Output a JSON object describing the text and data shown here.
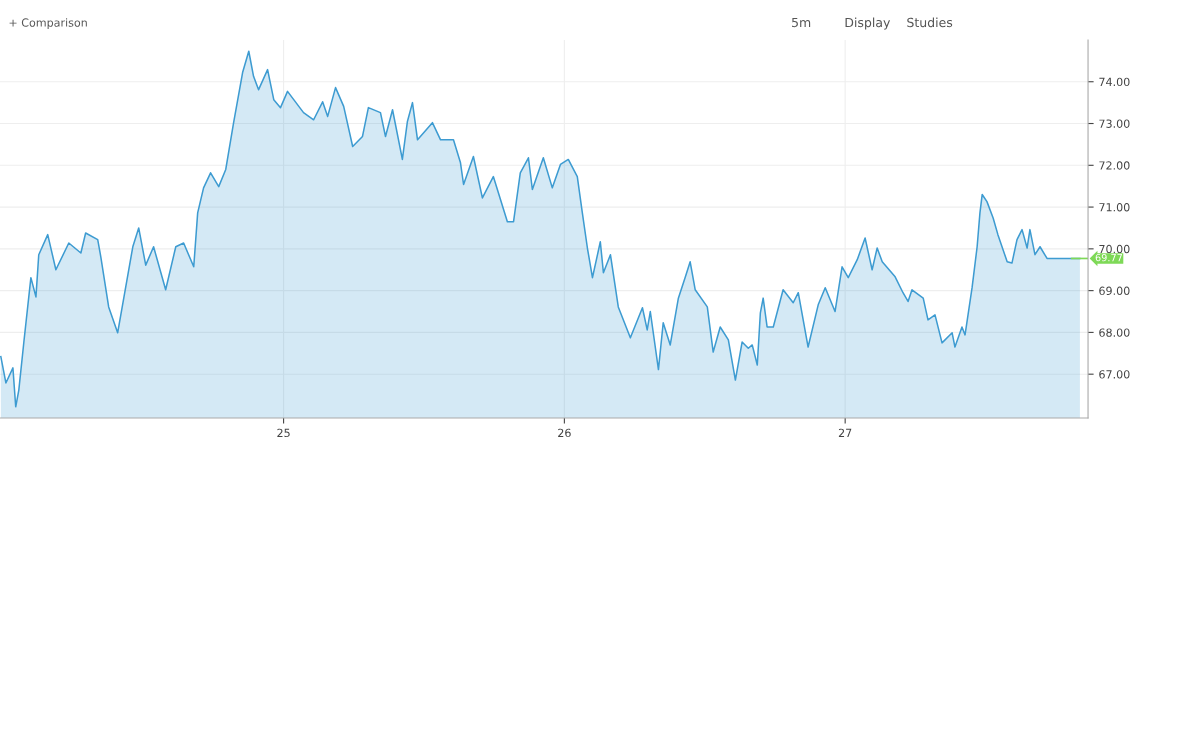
{
  "chart_data": {
    "type": "area",
    "series": [
      {
        "color": "#3d9bd1",
        "x": [
          23.993,
          24.011,
          24.036,
          24.046,
          24.057,
          24.075,
          24.1,
          24.118,
          24.128,
          24.16,
          24.189,
          24.235,
          24.278,
          24.295,
          24.338,
          24.349,
          24.377,
          24.409,
          24.463,
          24.484,
          24.509,
          24.537,
          24.58,
          24.616,
          24.644,
          24.68,
          24.694,
          24.715,
          24.74,
          24.769,
          24.794,
          24.822,
          24.854,
          24.876,
          24.893,
          24.911,
          24.943,
          24.965,
          24.989,
          25.014,
          25.071,
          25.107,
          25.139,
          25.157,
          25.185,
          25.214,
          25.246,
          25.281,
          25.302,
          25.345,
          25.363,
          25.388,
          25.423,
          25.441,
          25.459,
          25.477,
          25.53,
          25.559,
          25.605,
          25.63,
          25.641,
          25.676,
          25.708,
          25.747,
          25.797,
          25.819,
          25.843,
          25.872,
          25.886,
          25.925,
          25.957,
          25.986,
          26.014,
          26.046,
          26.064,
          26.082,
          26.1,
          26.128,
          26.139,
          26.164,
          26.192,
          26.235,
          26.278,
          26.295,
          26.306,
          26.335,
          26.352,
          26.377,
          26.406,
          26.431,
          26.448,
          26.466,
          26.509,
          26.53,
          26.555,
          26.584,
          26.609,
          26.633,
          26.655,
          26.669,
          26.687,
          26.698,
          26.708,
          26.722,
          26.744,
          26.779,
          26.815,
          26.833,
          26.868,
          26.904,
          26.929,
          26.964,
          26.989,
          27.011,
          27.043,
          27.071,
          27.096,
          27.114,
          27.132,
          27.178,
          27.206,
          27.224,
          27.238,
          27.278,
          27.295,
          27.32,
          27.345,
          27.381,
          27.391,
          27.416,
          27.427,
          27.452,
          27.47,
          27.48,
          27.488,
          27.505,
          27.527,
          27.544,
          27.577,
          27.594,
          27.612,
          27.63,
          27.648,
          27.658,
          27.676,
          27.694,
          27.719,
          27.836
        ],
        "values": [
          67.42,
          66.79,
          67.15,
          66.22,
          66.62,
          67.77,
          69.31,
          68.85,
          69.86,
          70.34,
          69.5,
          70.14,
          69.9,
          70.38,
          70.22,
          69.81,
          68.61,
          67.99,
          70.05,
          70.5,
          69.61,
          70.05,
          69.02,
          70.05,
          70.14,
          69.57,
          70.86,
          71.46,
          71.82,
          71.49,
          71.9,
          73.02,
          74.22,
          74.73,
          74.13,
          73.81,
          74.29,
          73.57,
          73.38,
          73.77,
          73.26,
          73.09,
          73.52,
          73.17,
          73.86,
          73.41,
          72.45,
          72.69,
          73.38,
          73.26,
          72.69,
          73.33,
          72.14,
          73.05,
          73.5,
          72.61,
          73.02,
          72.61,
          72.61,
          72.06,
          71.54,
          72.21,
          71.22,
          71.73,
          70.65,
          70.65,
          71.82,
          72.18,
          71.42,
          72.18,
          71.46,
          72.02,
          72.14,
          71.73,
          70.86,
          70.02,
          69.31,
          70.17,
          69.43,
          69.86,
          68.61,
          67.87,
          68.59,
          68.06,
          68.5,
          67.11,
          68.23,
          67.7,
          68.82,
          69.33,
          69.69,
          69.02,
          68.61,
          67.53,
          68.13,
          67.82,
          66.86,
          67.77,
          67.62,
          67.7,
          67.22,
          68.47,
          68.82,
          68.13,
          68.13,
          69.02,
          68.71,
          68.95,
          67.65,
          68.66,
          69.07,
          68.5,
          69.57,
          69.31,
          69.74,
          70.26,
          69.5,
          70.02,
          69.69,
          69.33,
          68.95,
          68.74,
          69.02,
          68.82,
          68.3,
          68.42,
          67.75,
          67.99,
          67.65,
          68.13,
          67.94,
          69.07,
          70.05,
          70.86,
          71.3,
          71.13,
          70.74,
          70.34,
          69.69,
          69.66,
          70.22,
          70.46,
          70.02,
          70.46,
          69.86,
          70.05,
          69.77,
          69.77
        ]
      }
    ],
    "xlim": [
      23.99,
      27.865
    ],
    "xticks": [
      25,
      26,
      27
    ],
    "ylim": [
      65.95,
      75.0
    ],
    "yticks": [
      {
        "value": 67,
        "label": "67.00"
      },
      {
        "value": 68,
        "label": "68.00"
      },
      {
        "value": 69,
        "label": "69.00"
      },
      {
        "value": 70,
        "label": "70.00"
      },
      {
        "value": 71,
        "label": "71.00"
      },
      {
        "value": 72,
        "label": "72.00"
      },
      {
        "value": 73,
        "label": "73.00"
      },
      {
        "value": 74,
        "label": "74.00"
      }
    ],
    "grid": true,
    "ref_lines": [
      {
        "axis": "y",
        "value": 69.77,
        "label": "69.77",
        "color": "#7ed957"
      }
    ],
    "annotations": [
      "+ Comparison",
      "5m",
      "Display",
      "Studies"
    ]
  }
}
